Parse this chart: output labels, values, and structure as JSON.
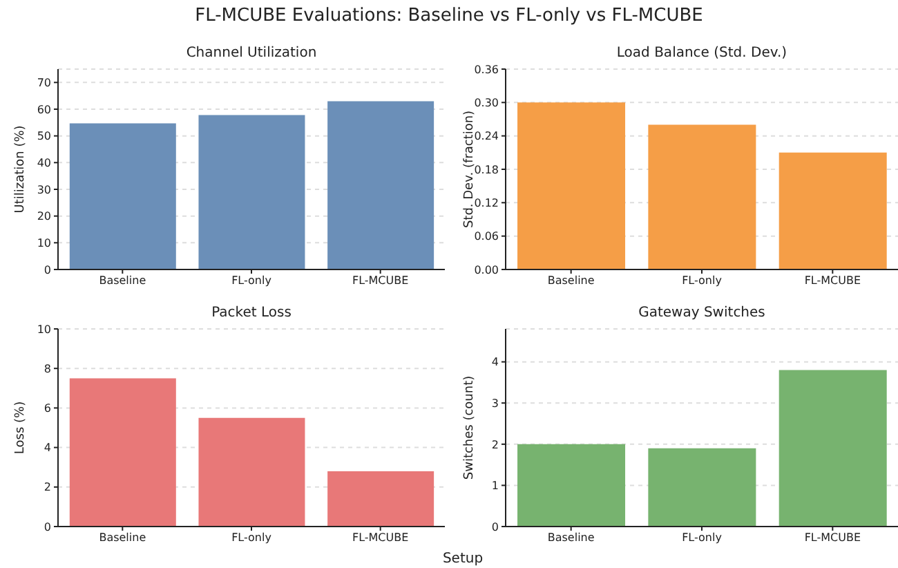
{
  "chart_data": [
    {
      "type": "bar",
      "title": "Channel Utilization",
      "annotations": [
        "FL-MCUBE Evaluations: Baseline vs FL-only vs FL-MCUBE"
      ],
      "ylabel": "Utilization (%)",
      "categories": [
        "Baseline",
        "FL-only",
        "FL-MCUBE"
      ],
      "values": [
        54.7,
        57.8,
        63.0
      ],
      "color": "#6b8fb8",
      "ylim": [
        0,
        75
      ],
      "yticks": [
        0,
        10,
        20,
        30,
        40,
        50,
        60,
        70
      ],
      "grid": "y"
    },
    {
      "type": "bar",
      "title": "Load Balance (Std. Dev.)",
      "ylabel": "Std. Dev. (fraction)",
      "categories": [
        "Baseline",
        "FL-only",
        "FL-MCUBE"
      ],
      "values": [
        0.3,
        0.26,
        0.21
      ],
      "color": "#f59e47",
      "ylim": [
        0,
        0.36
      ],
      "yticks": [
        {
          "value": 0,
          "label": "0.00"
        },
        {
          "value": 0.06,
          "label": "0.06"
        },
        {
          "value": 0.12,
          "label": "0.12"
        },
        {
          "value": 0.18,
          "label": "0.18"
        },
        {
          "value": 0.24,
          "label": "0.24"
        },
        {
          "value": 0.3,
          "label": "0.30"
        },
        {
          "value": 0.36,
          "label": "0.36"
        }
      ],
      "grid": "y"
    },
    {
      "type": "bar",
      "title": "Packet Loss",
      "ylabel": "Loss (%)",
      "categories": [
        "Baseline",
        "FL-only",
        "FL-MCUBE"
      ],
      "values": [
        7.5,
        5.5,
        2.8
      ],
      "color": "#e87878",
      "ylim": [
        0,
        10
      ],
      "yticks": [
        0,
        2,
        4,
        6,
        8,
        10
      ],
      "grid": "y"
    },
    {
      "type": "bar",
      "title": "Gateway Switches",
      "xlabel": "Setup",
      "ylabel": "Switches (count)",
      "categories": [
        "Baseline",
        "FL-only",
        "FL-MCUBE"
      ],
      "values": [
        2.0,
        1.9,
        3.8
      ],
      "color": "#77b36f",
      "ylim": [
        0,
        4.8
      ],
      "yticks": [
        0,
        1,
        2,
        3,
        4
      ],
      "grid": "y"
    }
  ]
}
